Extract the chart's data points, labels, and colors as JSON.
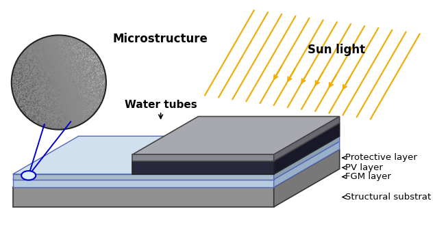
{
  "bg_color": "#ffffff",
  "labels": {
    "microstructure": "Microstructure",
    "water_tubes": "Water tubes",
    "sun_light": "Sun light",
    "protective_layer": "Protective layer",
    "pv_layer": "PV layer",
    "fgm_layer": "FGM layer",
    "structural_substrat": "Structural substrat"
  },
  "colors": {
    "slab_top": "#c8c8c8",
    "slab_front": "#909090",
    "slab_right": "#787878",
    "tube_top": "#dce8f4",
    "tube_front": "#b8cce0",
    "tube_right": "#98b0c8",
    "fgm_top": "#d0e0ee",
    "fgm_front": "#aabccc",
    "fgm_right": "#8a9eae",
    "pv_top": "#38384e",
    "pv_front": "#28283c",
    "pv_right": "#181828",
    "prot_top": "#a8a8b0",
    "prot_front": "#888890",
    "prot_right": "#686870",
    "sun_ray": "#f0aa00",
    "dashed_blue": "#4466cc",
    "annotation_line": "#0000cc"
  }
}
